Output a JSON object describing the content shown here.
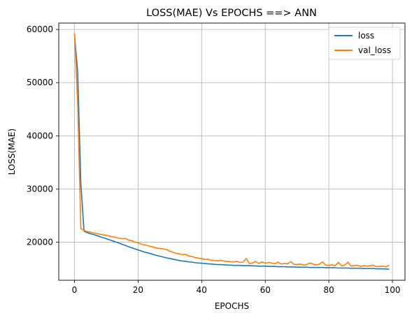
{
  "chart_data": {
    "type": "line",
    "title": "LOSS(MAE) Vs EPOCHS ==> ANN",
    "xlabel": "EPOCHS",
    "ylabel": "LOSS(MAE)",
    "xlim": [
      -4.95,
      103.95
    ],
    "ylim": [
      12850,
      61200
    ],
    "xticks": [
      0,
      20,
      40,
      60,
      80,
      100
    ],
    "xtick_labels": [
      "0",
      "20",
      "40",
      "60",
      "80",
      "100"
    ],
    "yticks": [
      20000,
      30000,
      40000,
      50000,
      60000
    ],
    "ytick_labels": [
      "20000",
      "30000",
      "40000",
      "50000",
      "60000"
    ],
    "grid": true,
    "legend_position": "top-right",
    "colors": {
      "loss": "#1f77b4",
      "val_loss": "#ff7f0e"
    },
    "series": [
      {
        "name": "loss",
        "x": [
          0,
          1,
          2,
          3,
          4,
          5,
          6,
          7,
          8,
          9,
          10,
          11,
          12,
          13,
          14,
          15,
          16,
          17,
          18,
          19,
          20,
          21,
          22,
          23,
          24,
          25,
          26,
          27,
          28,
          29,
          30,
          31,
          32,
          33,
          34,
          35,
          36,
          37,
          38,
          39,
          40,
          41,
          42,
          43,
          44,
          45,
          46,
          47,
          48,
          49,
          50,
          51,
          52,
          53,
          54,
          55,
          56,
          57,
          58,
          59,
          60,
          61,
          62,
          63,
          64,
          65,
          66,
          67,
          68,
          69,
          70,
          71,
          72,
          73,
          74,
          75,
          76,
          77,
          78,
          79,
          80,
          81,
          82,
          83,
          84,
          85,
          86,
          87,
          88,
          89,
          90,
          91,
          92,
          93,
          94,
          95,
          96,
          97,
          98,
          99
        ],
        "values": [
          59000,
          52000,
          31000,
          22100,
          21800,
          21600,
          21450,
          21250,
          21050,
          20850,
          20650,
          20450,
          20250,
          20050,
          19850,
          19600,
          19400,
          19150,
          18950,
          18750,
          18550,
          18350,
          18150,
          18000,
          17850,
          17650,
          17500,
          17350,
          17200,
          17050,
          16950,
          16800,
          16700,
          16550,
          16450,
          16400,
          16300,
          16250,
          16150,
          16100,
          16050,
          16000,
          15950,
          15900,
          15850,
          15800,
          15800,
          15750,
          15700,
          15700,
          15650,
          15650,
          15650,
          15600,
          15600,
          15600,
          15550,
          15550,
          15500,
          15500,
          15500,
          15450,
          15450,
          15450,
          15400,
          15400,
          15400,
          15350,
          15350,
          15350,
          15300,
          15300,
          15300,
          15300,
          15250,
          15250,
          15250,
          15250,
          15250,
          15200,
          15200,
          15200,
          15200,
          15150,
          15150,
          15150,
          15150,
          15100,
          15100,
          15100,
          15100,
          15050,
          15050,
          15050,
          15050,
          15000,
          15000,
          15000,
          14950,
          14950
        ]
      },
      {
        "name": "val_loss",
        "x": [
          0,
          1,
          2,
          3,
          4,
          5,
          6,
          7,
          8,
          9,
          10,
          11,
          12,
          13,
          14,
          15,
          16,
          17,
          18,
          19,
          20,
          21,
          22,
          23,
          24,
          25,
          26,
          27,
          28,
          29,
          30,
          31,
          32,
          33,
          34,
          35,
          36,
          37,
          38,
          39,
          40,
          41,
          42,
          43,
          44,
          45,
          46,
          47,
          48,
          49,
          50,
          51,
          52,
          53,
          54,
          55,
          56,
          57,
          58,
          59,
          60,
          61,
          62,
          63,
          64,
          65,
          66,
          67,
          68,
          69,
          70,
          71,
          72,
          73,
          74,
          75,
          76,
          77,
          78,
          79,
          80,
          81,
          82,
          83,
          84,
          85,
          86,
          87,
          88,
          89,
          90,
          91,
          92,
          93,
          94,
          95,
          96,
          97,
          98,
          99
        ],
        "values": [
          59300,
          46000,
          22600,
          22200,
          22000,
          21900,
          21750,
          21650,
          21500,
          21400,
          21300,
          21150,
          21000,
          20900,
          20750,
          20650,
          20700,
          20400,
          20300,
          20000,
          19900,
          19650,
          19500,
          19350,
          19200,
          19050,
          18900,
          18800,
          18750,
          18600,
          18300,
          18100,
          17900,
          17800,
          17650,
          17700,
          17400,
          17300,
          17100,
          17000,
          16900,
          16750,
          16800,
          16600,
          16550,
          16500,
          16600,
          16450,
          16400,
          16350,
          16300,
          16400,
          16200,
          16250,
          16950,
          16000,
          16100,
          16400,
          16000,
          16300,
          16050,
          16200,
          16100,
          15950,
          16250,
          15900,
          16000,
          15950,
          16350,
          15850,
          15800,
          15900,
          15700,
          15800,
          16100,
          15900,
          15750,
          15850,
          16300,
          15700,
          15650,
          15750,
          15600,
          16200,
          15550,
          15700,
          16250,
          15500,
          15600,
          15650,
          15450,
          15600,
          15500,
          15550,
          15700,
          15400,
          15450,
          15500,
          15350,
          15700
        ]
      }
    ]
  }
}
